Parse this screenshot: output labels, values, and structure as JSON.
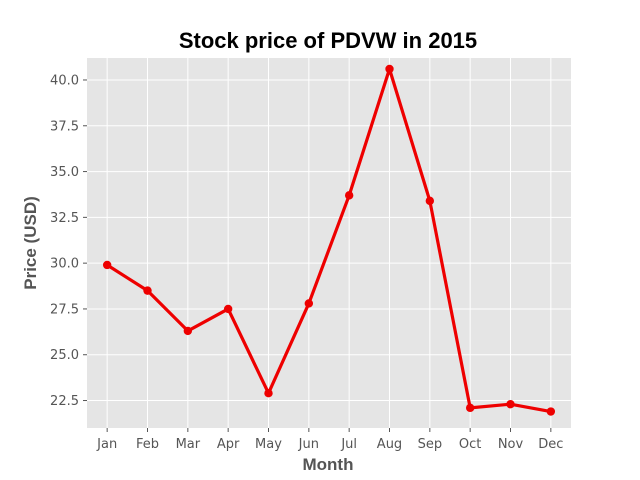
{
  "chart_data": {
    "type": "line",
    "title": "Stock price of PDVW in 2015",
    "xlabel": "Month",
    "ylabel": "Price (USD)",
    "categories": [
      "Jan",
      "Feb",
      "Mar",
      "Apr",
      "May",
      "Jun",
      "Jul",
      "Aug",
      "Sep",
      "Oct",
      "Nov",
      "Dec"
    ],
    "series": [
      {
        "name": "PDVW",
        "values": [
          29.9,
          28.5,
          26.3,
          27.5,
          22.9,
          27.8,
          33.7,
          40.6,
          33.4,
          22.1,
          22.3,
          21.9
        ]
      }
    ],
    "ylim": [
      21.0,
      41.2
    ],
    "yticks": [
      "22.5",
      "25.0",
      "27.5",
      "30.0",
      "32.5",
      "35.0",
      "37.5",
      "40.0"
    ],
    "grid": true,
    "colors": {
      "line": "#ee0000",
      "background": "#e5e5e5",
      "grid": "#ffffff",
      "text": "#555555"
    }
  }
}
